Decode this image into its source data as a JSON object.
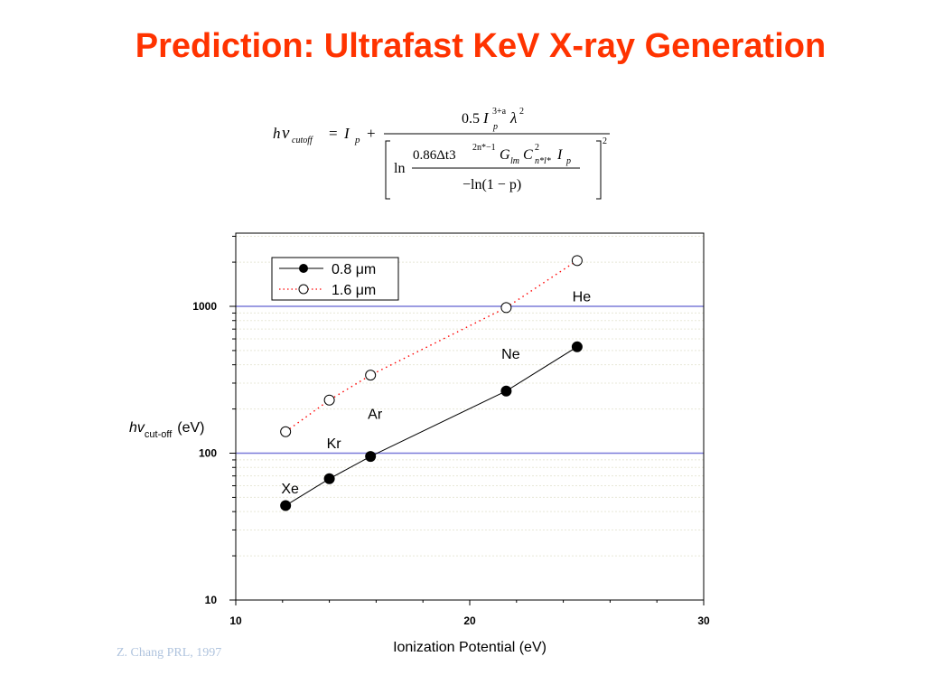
{
  "slide": {
    "title": "Prediction: Ultrafast KeV X-ray Generation",
    "citation": "Z. Chang PRL, 1997"
  },
  "formula": {
    "lhs_h": "h",
    "lhs_nu": "ν",
    "lhs_sub": "cutoff",
    "eq": "=",
    "ip": "I",
    "ip_sub": "p",
    "plus": "+",
    "num_coef": "0.5",
    "num_I": "I",
    "num_sup": "3+a",
    "num_sub": "p",
    "num_lambda": "λ",
    "num_lambda_sup": "2",
    "ln": "ln",
    "inner_coef": "0.86Δt3",
    "inner_sup": "2n*−1",
    "G": "G",
    "G_sub": "lm",
    "C": "C",
    "C_sup": "2",
    "C_sub": "n*l*",
    "I2": "I",
    "I2_sub": "p",
    "inner_den": "−ln(1 − p)",
    "outer_sup": "2"
  },
  "chart_data": {
    "type": "line",
    "x_scale": "linear",
    "y_scale": "log",
    "xlim": [
      10,
      30
    ],
    "ylim": [
      10,
      3000
    ],
    "x_ticks": [
      10,
      20,
      30
    ],
    "x_tick_labels": [
      "10",
      "20",
      "30"
    ],
    "y_ticks": [
      10,
      100,
      1000
    ],
    "y_tick_labels": [
      "10",
      "100",
      "1000"
    ],
    "xlabel": "Ionization Potential (eV)",
    "ylabel": {
      "main": "hv",
      "sub": "cut-off",
      "unit": "(eV)"
    },
    "grid": true,
    "reference_lines": [
      100,
      1000
    ],
    "legend_position": "top-left",
    "series": [
      {
        "name": "0.8 μm",
        "marker": "filled-circle",
        "line": "solid",
        "color": "#000000",
        "x": [
          12.13,
          14.0,
          15.76,
          21.56,
          24.59
        ],
        "y": [
          44,
          67,
          95,
          265,
          530
        ]
      },
      {
        "name": "1.6 μm",
        "marker": "open-circle",
        "line": "dotted",
        "color": "#ff0000",
        "x": [
          12.13,
          14.0,
          15.76,
          21.56,
          24.59
        ],
        "y": [
          140,
          230,
          340,
          980,
          2050
        ]
      }
    ],
    "annotations": [
      {
        "text": "Xe",
        "x": 12.13,
        "y": 58
      },
      {
        "text": "Kr",
        "x": 14.0,
        "y": 118
      },
      {
        "text": "Ar",
        "x": 15.76,
        "y": 186
      },
      {
        "text": "Ne",
        "x": 21.56,
        "y": 480
      },
      {
        "text": "He",
        "x": 24.59,
        "y": 1180
      }
    ]
  },
  "colors": {
    "title": "#ff3300",
    "reference_line": "#7b7bd9",
    "grid": "#e8e8d8",
    "citation": "#b0c4de"
  }
}
